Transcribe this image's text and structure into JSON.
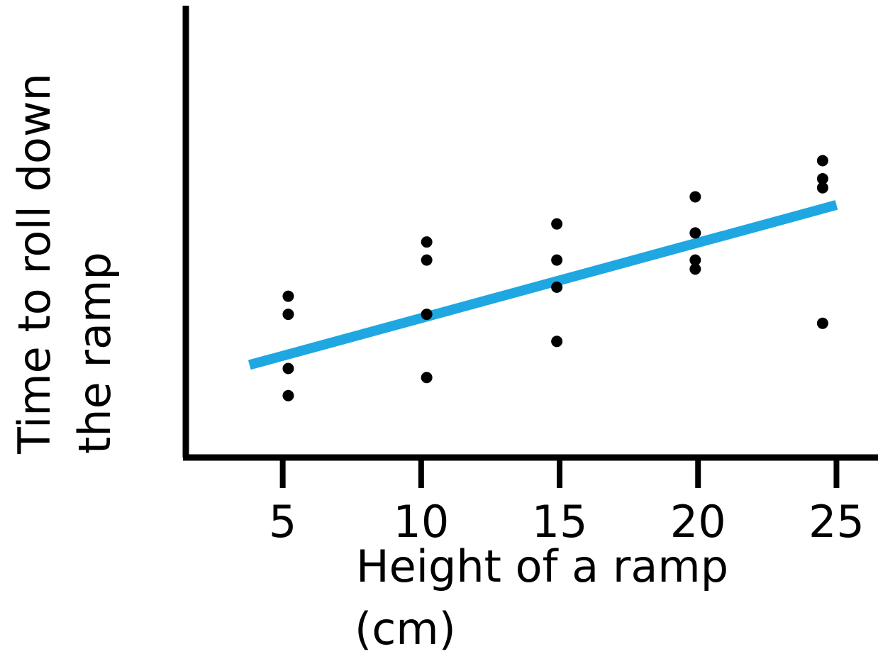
{
  "chart_data": {
    "type": "scatter",
    "title": "",
    "xlabel": [
      "Height of a ramp",
      "(cm)"
    ],
    "ylabel": [
      "Time to roll down",
      "the ramp"
    ],
    "x_ticks": [
      5,
      10,
      15,
      20,
      25
    ],
    "xlim": [
      1.5,
      26.5
    ],
    "ylim": [
      0,
      100
    ],
    "y_tick_labels_shown": false,
    "grid": false,
    "legend": "none",
    "colors": {
      "points": "#000000",
      "trend_line": "#1ea7e1",
      "axes": "#000000"
    },
    "series": [
      {
        "points": [
          {
            "x": 5.2,
            "y": 35.7
          },
          {
            "x": 5.2,
            "y": 31.7
          },
          {
            "x": 5.2,
            "y": 19.7
          },
          {
            "x": 5.2,
            "y": 13.7
          },
          {
            "x": 10.2,
            "y": 47.7
          },
          {
            "x": 10.2,
            "y": 43.7
          },
          {
            "x": 10.2,
            "y": 31.7
          },
          {
            "x": 10.2,
            "y": 17.7
          },
          {
            "x": 14.9,
            "y": 51.7
          },
          {
            "x": 14.9,
            "y": 43.7
          },
          {
            "x": 14.9,
            "y": 37.7
          },
          {
            "x": 14.9,
            "y": 25.7
          },
          {
            "x": 19.9,
            "y": 57.7
          },
          {
            "x": 19.9,
            "y": 49.7
          },
          {
            "x": 19.9,
            "y": 43.7
          },
          {
            "x": 19.9,
            "y": 41.7
          },
          {
            "x": 24.5,
            "y": 65.7
          },
          {
            "x": 24.5,
            "y": 61.7
          },
          {
            "x": 24.5,
            "y": 59.7
          },
          {
            "x": 24.5,
            "y": 29.7
          }
        ]
      }
    ],
    "trend_line": {
      "from": {
        "x": 3.8,
        "y": 20.5
      },
      "to": {
        "x": 25.0,
        "y": 55.9
      }
    }
  }
}
